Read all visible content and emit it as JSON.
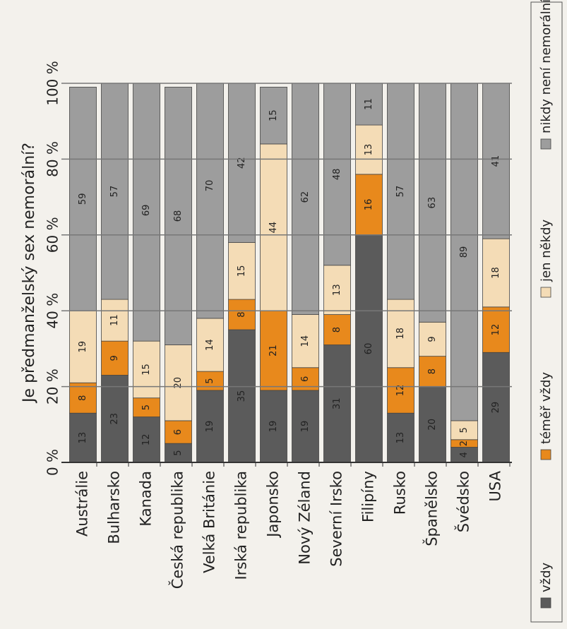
{
  "chart_data": {
    "type": "stacked_bar_horizontal",
    "title": "Je předmanželský sex nemorální?",
    "categories": [
      "Austrálie",
      "Bulharsko",
      "Kanada",
      "Česká republika",
      "Velká Británie",
      "Irská republika",
      "Japonsko",
      "Nový Zéland",
      "Severní Irsko",
      "Filipíny",
      "Rusko",
      "Španělsko",
      "Švédsko",
      "USA"
    ],
    "series": [
      {
        "name": "vždy",
        "color": "#5b5b5b",
        "values": [
          13,
          23,
          12,
          5,
          19,
          35,
          19,
          19,
          31,
          60,
          13,
          20,
          4,
          29
        ]
      },
      {
        "name": "téměř vždy",
        "color": "#e8891c",
        "values": [
          8,
          9,
          5,
          6,
          5,
          8,
          21,
          6,
          8,
          16,
          12,
          8,
          2,
          12
        ]
      },
      {
        "name": "jen někdy",
        "color": "#f4dcb6",
        "values": [
          19,
          11,
          15,
          20,
          14,
          15,
          44,
          14,
          13,
          13,
          18,
          9,
          5,
          18
        ]
      },
      {
        "name": "nikdy není nemorální",
        "color": "#9d9d9d",
        "values": [
          59,
          57,
          69,
          68,
          70,
          42,
          15,
          62,
          48,
          11,
          57,
          63,
          89,
          41
        ]
      }
    ],
    "xlim": [
      0,
      100
    ],
    "xticks": [
      {
        "value": 0,
        "label": "0 %"
      },
      {
        "value": 20,
        "label": "20 %"
      },
      {
        "value": 40,
        "label": "40 %"
      },
      {
        "value": 60,
        "label": "60 %"
      },
      {
        "value": 80,
        "label": "80 %"
      },
      {
        "value": 100,
        "label": "100 %"
      }
    ],
    "grid": true
  }
}
